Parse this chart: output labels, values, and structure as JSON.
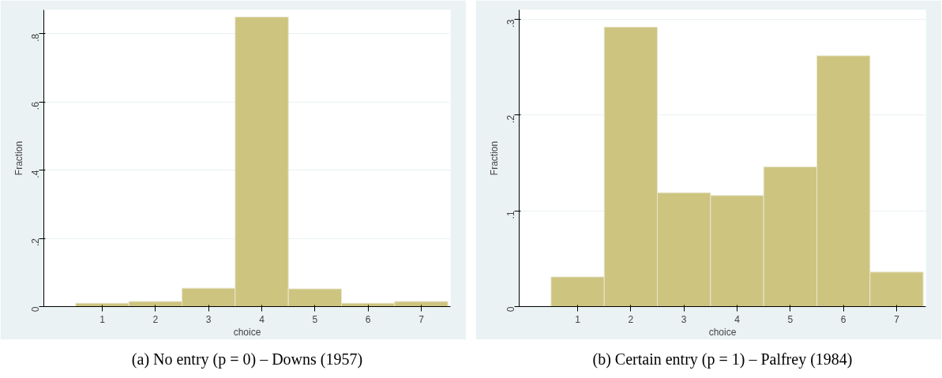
{
  "chart_data": [
    {
      "type": "histogram",
      "xlabel": "choice",
      "ylabel": "Fraction",
      "bins": [
        0.5,
        1.5,
        2.5,
        3.5,
        4.5,
        5.5,
        6.5,
        7.5
      ],
      "values": [
        0.01,
        0.015,
        0.054,
        0.849,
        0.052,
        0.01,
        0.015
      ],
      "color": "#cdc47f",
      "xlim": [
        -0.1,
        7.55
      ],
      "ylim": [
        0,
        0.87
      ],
      "xticks": [
        1,
        2,
        3,
        4,
        5,
        6,
        7
      ],
      "yticks": [
        0,
        {
          "value": 0.2,
          "label": ".2"
        },
        {
          "value": 0.4,
          "label": ".4"
        },
        {
          "value": 0.6,
          "label": ".6"
        },
        {
          "value": 0.8,
          "label": ".8"
        }
      ],
      "grid": "y",
      "annotations": [
        "(a) No entry (p = 0) – Downs (1957)"
      ]
    },
    {
      "type": "histogram",
      "xlabel": "choice",
      "ylabel": "Fraction",
      "bins": [
        0.5,
        1.5,
        2.5,
        3.5,
        4.5,
        5.5,
        6.5,
        7.5
      ],
      "values": [
        0.031,
        0.292,
        0.119,
        0.116,
        0.146,
        0.262,
        0.036
      ],
      "color": "#cdc47f",
      "xlim": [
        -0.1,
        7.55
      ],
      "ylim": [
        0,
        0.31
      ],
      "xticks": [
        1,
        2,
        3,
        4,
        5,
        6,
        7
      ],
      "yticks": [
        0,
        {
          "value": 0.1,
          "label": ".1"
        },
        {
          "value": 0.2,
          "label": ".2"
        },
        {
          "value": 0.3,
          "label": ".3"
        }
      ],
      "grid": "y",
      "annotations": [
        "(b) Certain entry (p = 1) – Palfrey (1984)"
      ]
    }
  ]
}
